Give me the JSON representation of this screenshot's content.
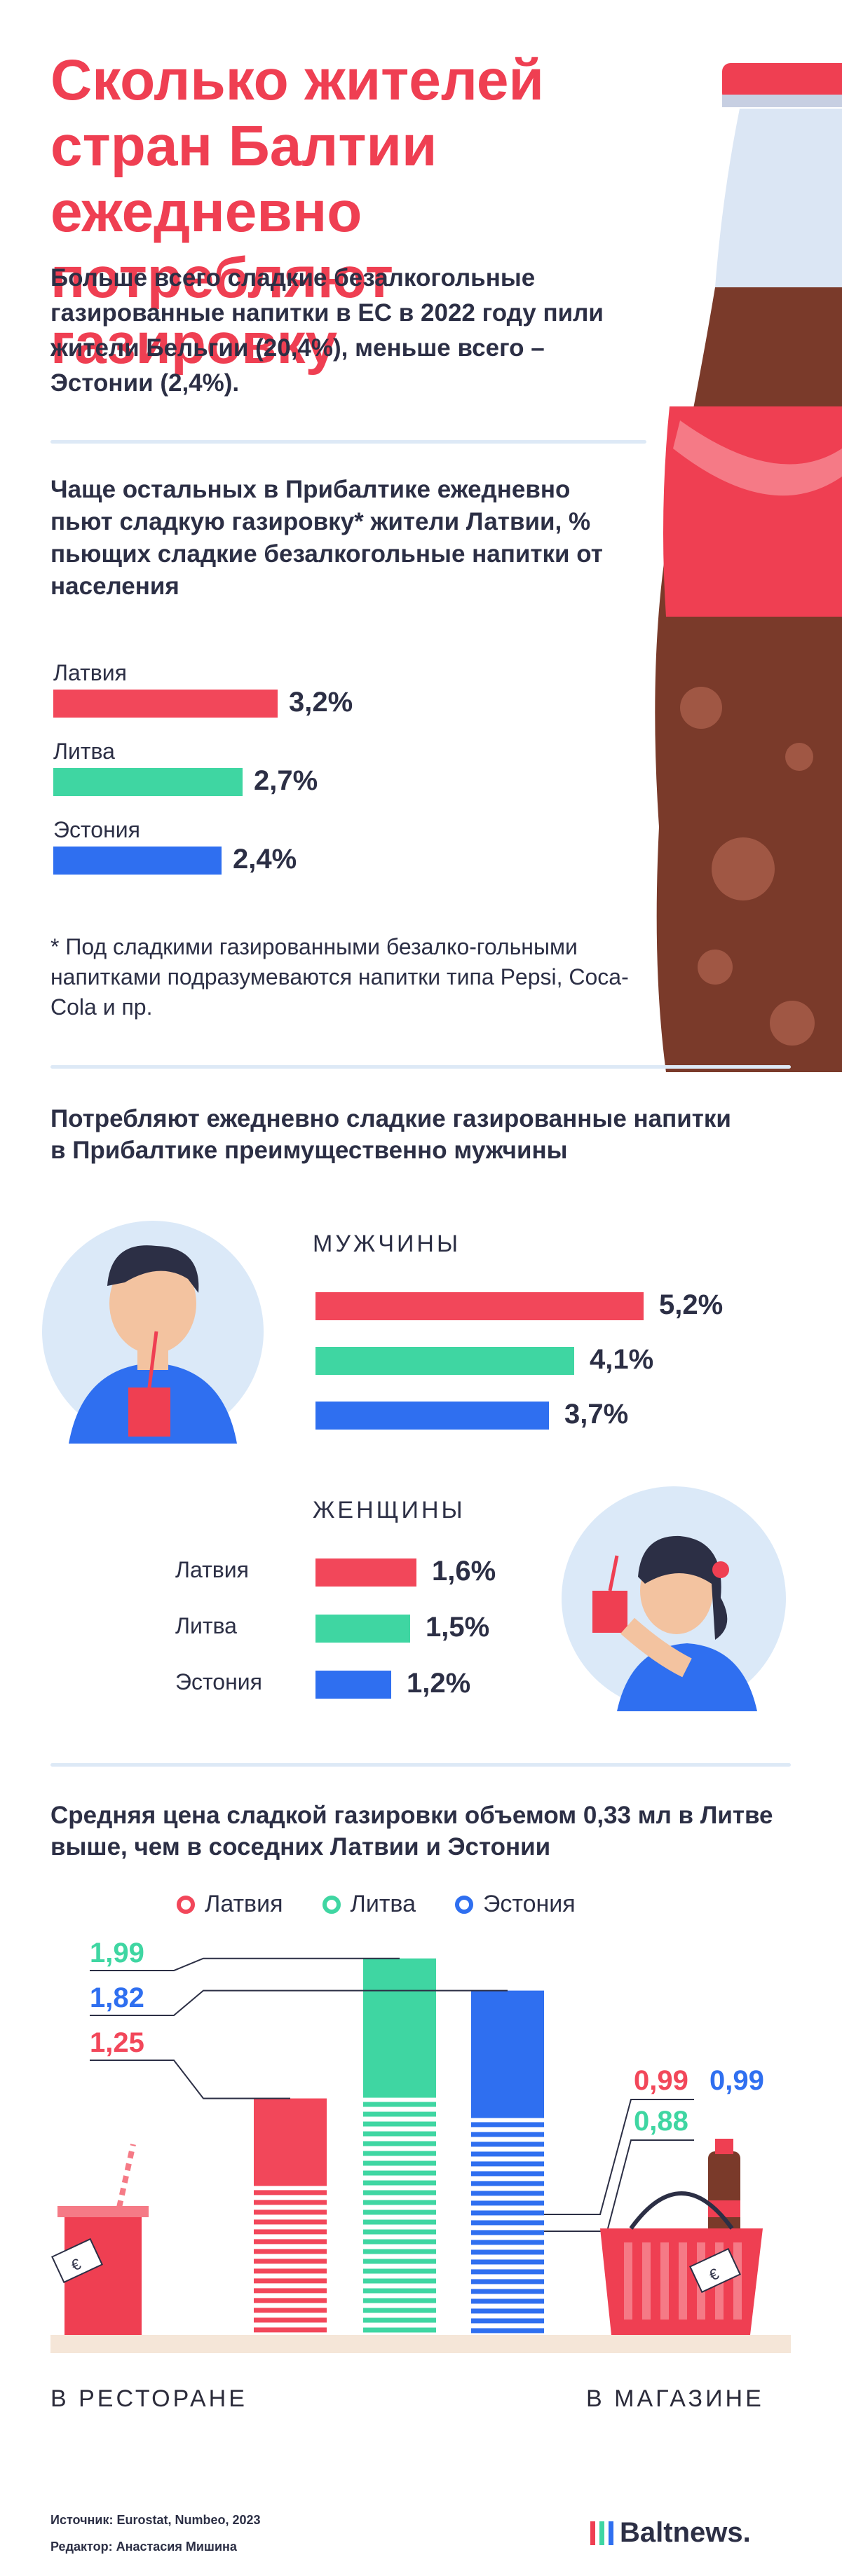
{
  "header": {
    "title": "Сколько жителей стран Балтии ежедневно потребляют газировку",
    "intro": "Больше всего сладкие безалкогольные газированные напитки в ЕС в 2022 году пили жители Бельгии (20,4%), меньше всего – Эстонии (2,4%)."
  },
  "colors": {
    "latvia": "#f2475a",
    "lithuania": "#3fd6a2",
    "estonia": "#2f6ff0"
  },
  "chart_data": [
    {
      "type": "bar",
      "title": "Чаще остальных в Прибалтике ежедневно пьют сладкую газировку* жители Латвии, % пьющих сладкие безалкогольные напитки от населения",
      "categories": [
        "Латвия",
        "Литва",
        "Эстония"
      ],
      "values": [
        3.2,
        2.7,
        2.4
      ],
      "value_labels": [
        "3,2%",
        "2,7%",
        "2,4%"
      ],
      "note": "* Под сладкими газированными безалко-гольными напитками подразумеваются напитки типа Pepsi, Coca-Cola и пр."
    },
    {
      "type": "bar",
      "title": "Потребляют ежедневно сладкие газированные напитки в Прибалтике преимущественно мужчины",
      "categories": [
        "Латвия",
        "Литва",
        "Эстония"
      ],
      "series": [
        {
          "name": "МУЖЧИНЫ",
          "values": [
            5.2,
            4.1,
            3.7
          ],
          "value_labels": [
            "5,2%",
            "4,1%",
            "3,7%"
          ]
        },
        {
          "name": "ЖЕНЩИНЫ",
          "values": [
            1.6,
            1.5,
            1.2
          ],
          "value_labels": [
            "1,6%",
            "1,5%",
            "1,2%"
          ]
        }
      ]
    },
    {
      "type": "bar",
      "title": "Средняя цена сладкой газировки объемом 0,33 мл в Литве выше, чем в соседних Латвии и Эстонии",
      "legend": [
        "Латвия",
        "Литва",
        "Эстония"
      ],
      "categories": [
        "В РЕСТОРАНЕ",
        "В МАГАЗИНЕ"
      ],
      "series": [
        {
          "name": "Латвия",
          "values": [
            1.25,
            0.99
          ],
          "value_labels": [
            "1,25",
            "0,99"
          ]
        },
        {
          "name": "Литва",
          "values": [
            1.99,
            0.88
          ],
          "value_labels": [
            "1,99",
            "0,88"
          ]
        },
        {
          "name": "Эстония",
          "values": [
            1.82,
            0.99
          ],
          "value_labels": [
            "1,82",
            "0,99"
          ]
        }
      ]
    }
  ],
  "footer": {
    "source": "Источник: Eurostat, Numbeo, 2023",
    "editor": "Редактор: Анастасия Мишина",
    "brand": "Baltnews."
  }
}
